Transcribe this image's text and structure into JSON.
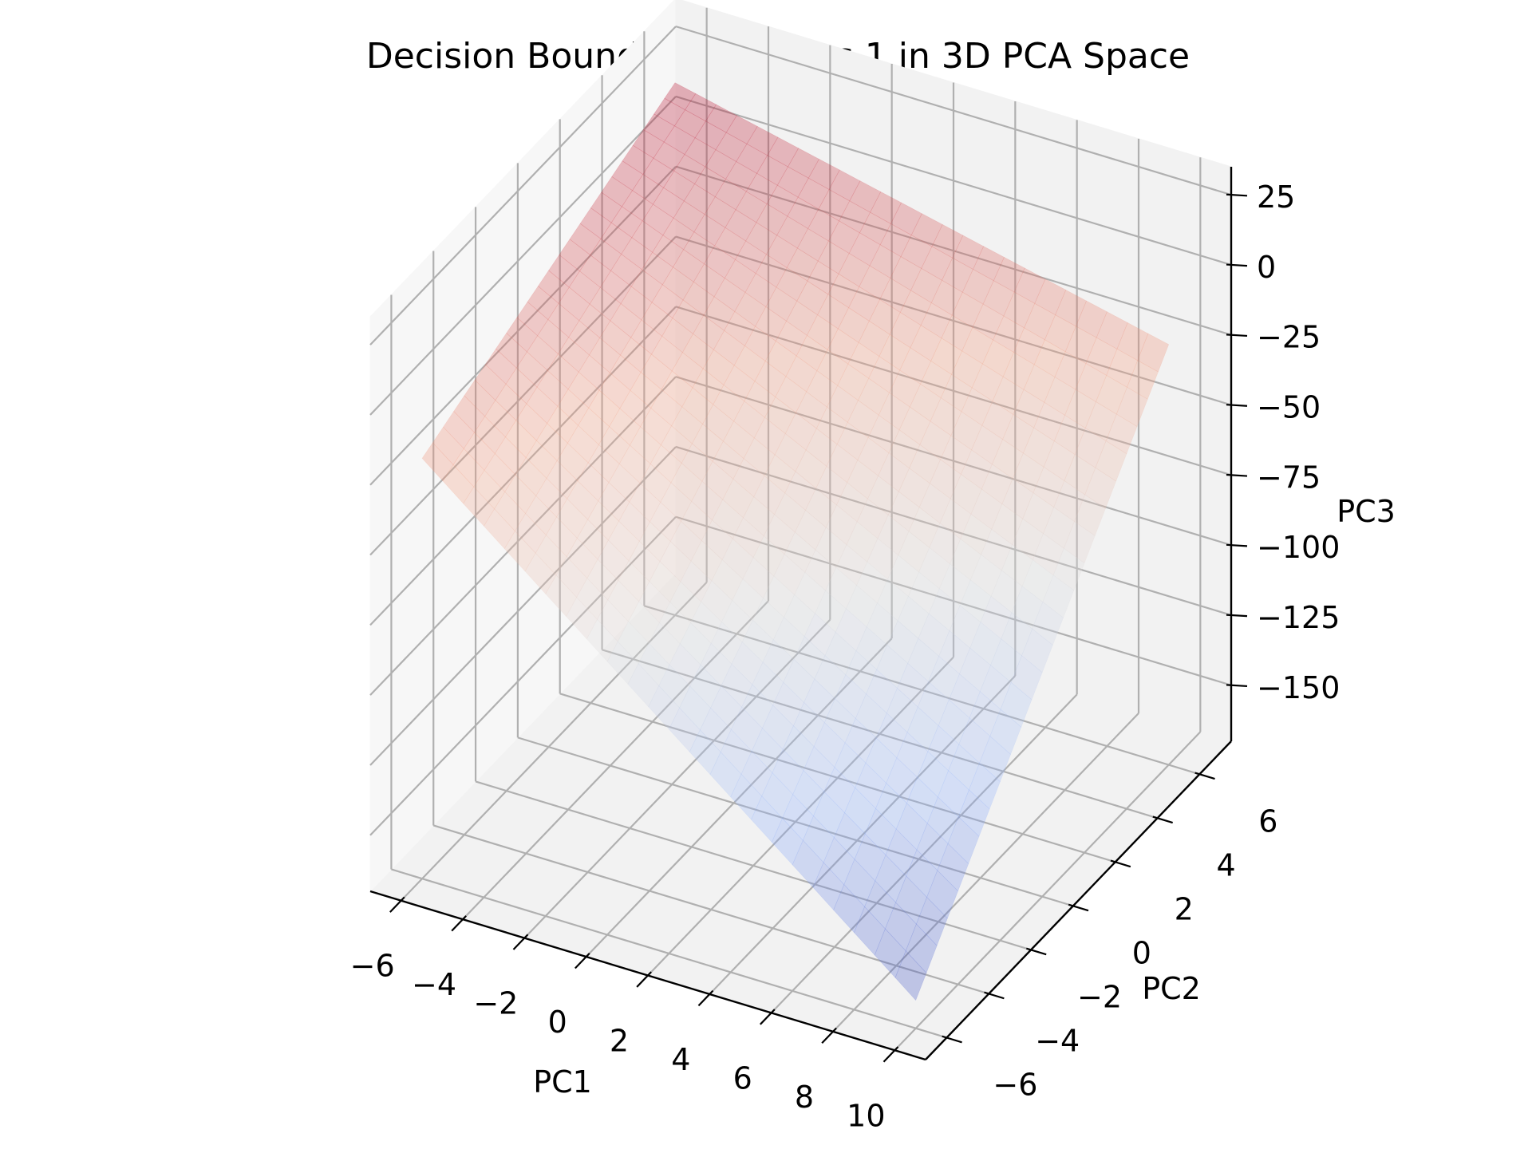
{
  "chart_data": {
    "type": "surface3d",
    "title": "Decision Boundary for class  1 in 3D PCA Space",
    "xlabel": "PC1",
    "ylabel": "PC2",
    "zlabel": "PC3",
    "xlim": [
      -7,
      11
    ],
    "ylim": [
      -7,
      7.5
    ],
    "zlim": [
      -170,
      35
    ],
    "x_ticks": [
      -6,
      -4,
      -2,
      0,
      2,
      4,
      6,
      8,
      10
    ],
    "y_ticks": [
      -6,
      -4,
      -2,
      0,
      2,
      4,
      6
    ],
    "z_ticks": [
      25,
      0,
      -25,
      -50,
      -75,
      -100,
      -125,
      -150
    ],
    "x_tick_labels": [
      "−6",
      "−4",
      "−2",
      "0",
      "2",
      "4",
      "6",
      "8",
      "10"
    ],
    "y_tick_labels": [
      "−6",
      "−4",
      "−2",
      "0",
      "2",
      "4",
      "6"
    ],
    "z_tick_labels": [
      "25",
      "0",
      "−25",
      "−50",
      "−75",
      "−100",
      "−125",
      "−150"
    ],
    "surface": {
      "x_range": [
        -6,
        10
      ],
      "y_range": [
        -6,
        6
      ],
      "corners": [
        {
          "x": -6,
          "y": 6,
          "z": 20
        },
        {
          "x": 10,
          "y": 6,
          "z": -20
        },
        {
          "x": -6,
          "y": -6,
          "z": -20
        },
        {
          "x": 10,
          "y": -6,
          "z": -160
        }
      ],
      "colormap": "coolwarm",
      "alpha": 0.3
    },
    "grid": true,
    "pane_color": "#f2f2f2"
  }
}
